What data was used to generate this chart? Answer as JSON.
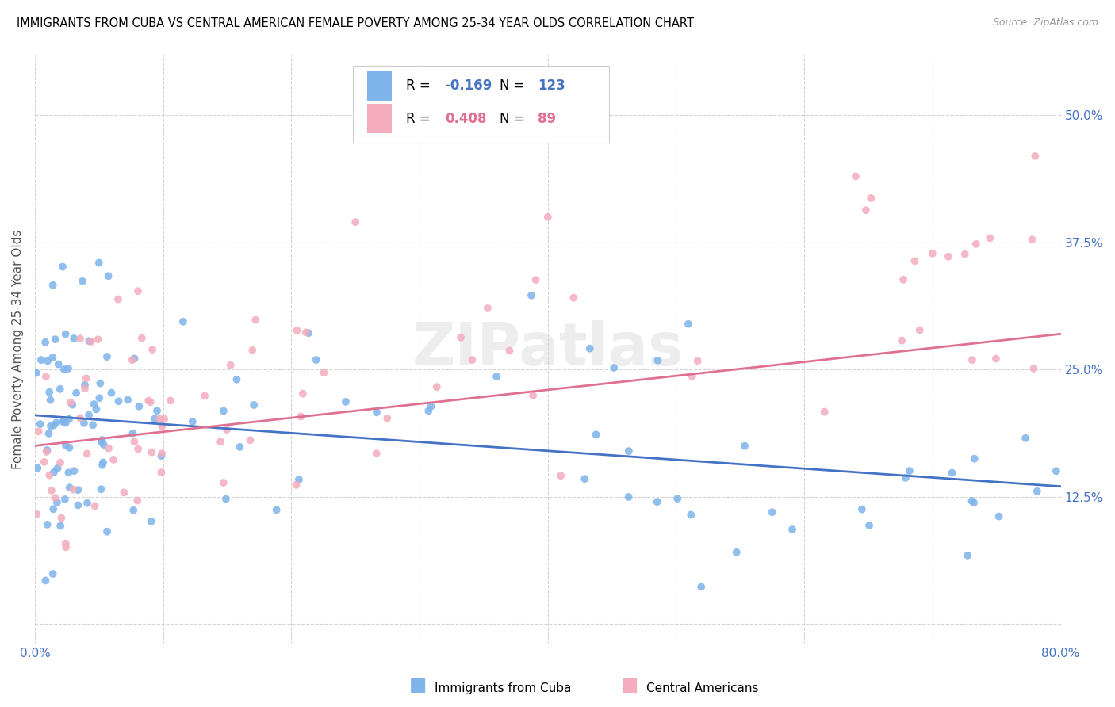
{
  "title": "IMMIGRANTS FROM CUBA VS CENTRAL AMERICAN FEMALE POVERTY AMONG 25-34 YEAR OLDS CORRELATION CHART",
  "source": "Source: ZipAtlas.com",
  "ylabel": "Female Poverty Among 25-34 Year Olds",
  "xlim": [
    0.0,
    0.8
  ],
  "ylim": [
    -0.02,
    0.56
  ],
  "yticks": [
    0.0,
    0.125,
    0.25,
    0.375,
    0.5
  ],
  "yticklabels": [
    "",
    "12.5%",
    "25.0%",
    "37.5%",
    "50.0%"
  ],
  "xticks": [
    0.0,
    0.1,
    0.2,
    0.3,
    0.4,
    0.5,
    0.6,
    0.7,
    0.8
  ],
  "xticklabels": [
    "0.0%",
    "",
    "",
    "",
    "",
    "",
    "",
    "",
    "80.0%"
  ],
  "blue_R": -0.169,
  "blue_N": 123,
  "pink_R": 0.408,
  "pink_N": 89,
  "blue_color": "#7EB4EA",
  "pink_color": "#F4ACBE",
  "blue_line_color": "#4472C4",
  "pink_line_color": "#E07090",
  "watermark": "ZIPatlas",
  "legend_label_blue": "Immigrants from Cuba",
  "legend_label_pink": "Central Americans",
  "blue_trend_y_start": 0.205,
  "blue_trend_y_end": 0.135,
  "pink_trend_y_start": 0.175,
  "pink_trend_y_end": 0.285
}
